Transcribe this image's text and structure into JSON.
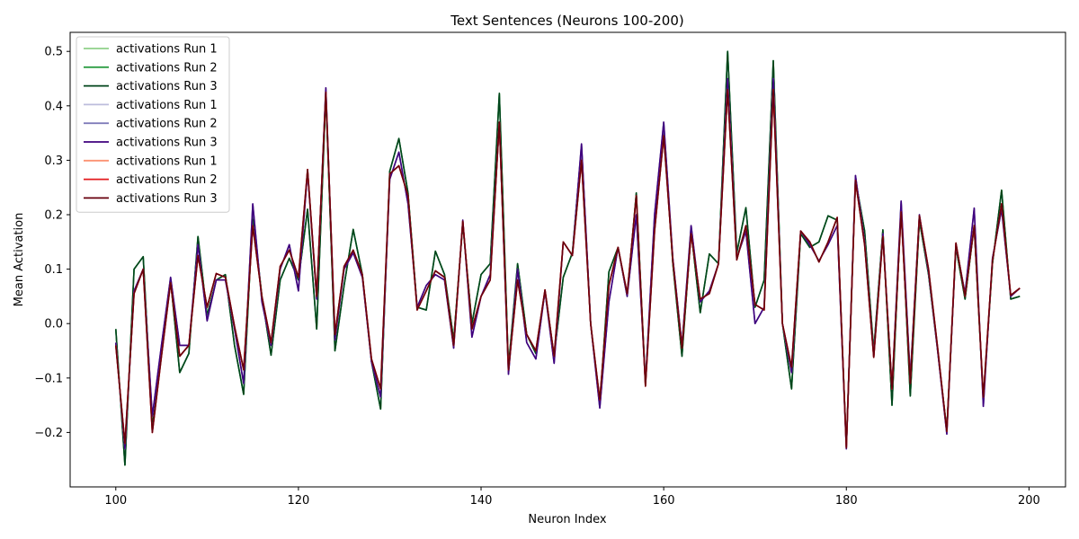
{
  "chart_data": {
    "type": "line",
    "title": "Text Sentences (Neurons 100-200)",
    "xlabel": "Neuron Index",
    "ylabel": "Mean Activation",
    "xlim": [
      95,
      204
    ],
    "ylim": [
      -0.3,
      0.535
    ],
    "xticks": [
      100,
      120,
      140,
      160,
      180,
      200
    ],
    "yticks": [
      -0.2,
      -0.1,
      0.0,
      0.1,
      0.2,
      0.3,
      0.4,
      0.5
    ],
    "ytick_labels": [
      "−0.2",
      "−0.1",
      "0.0",
      "0.1",
      "0.2",
      "0.3",
      "0.4",
      "0.5"
    ],
    "grid": false,
    "legend_position": "top-left",
    "x": [
      100,
      101,
      102,
      103,
      104,
      105,
      106,
      107,
      108,
      109,
      110,
      111,
      112,
      113,
      114,
      115,
      116,
      117,
      118,
      119,
      120,
      121,
      122,
      123,
      124,
      125,
      126,
      127,
      128,
      129,
      130,
      131,
      132,
      133,
      134,
      135,
      136,
      137,
      138,
      139,
      140,
      141,
      142,
      143,
      144,
      145,
      146,
      147,
      148,
      149,
      150,
      151,
      152,
      153,
      154,
      155,
      156,
      157,
      158,
      159,
      160,
      161,
      162,
      163,
      164,
      165,
      166,
      167,
      168,
      169,
      170,
      171,
      172,
      173,
      174,
      175,
      176,
      177,
      178,
      179,
      180,
      181,
      182,
      183,
      184,
      185,
      186,
      187,
      188,
      189,
      190,
      191,
      192,
      193,
      194,
      195,
      196,
      197,
      198,
      199
    ],
    "series": [
      {
        "name": "activations Run 1",
        "color": "#8fd18a",
        "values": [
          -0.01,
          -0.26,
          0.1,
          0.123,
          -0.19,
          -0.05,
          0.08,
          -0.09,
          -0.055,
          0.16,
          0.015,
          0.08,
          0.09,
          -0.04,
          -0.13,
          0.2,
          0.05,
          -0.058,
          0.08,
          0.12,
          0.08,
          0.21,
          -0.01,
          0.42,
          -0.05,
          0.07,
          0.173,
          0.09,
          -0.07,
          -0.157,
          0.28,
          0.34,
          0.24,
          0.03,
          0.025,
          0.133,
          0.09,
          -0.03,
          0.183,
          0.0,
          0.09,
          0.11,
          0.423,
          -0.08,
          0.11,
          -0.02,
          -0.055,
          0.06,
          -0.06,
          0.085,
          0.13,
          0.325,
          0.0,
          -0.15,
          0.095,
          0.14,
          0.05,
          0.24,
          -0.11,
          0.19,
          0.36,
          0.11,
          -0.06,
          0.17,
          0.02,
          0.128,
          0.11,
          0.5,
          0.13,
          0.213,
          0.03,
          0.08,
          0.483,
          0.0,
          -0.12,
          0.165,
          0.14,
          0.15,
          0.198,
          0.19,
          -0.225,
          0.265,
          0.17,
          -0.05,
          0.172,
          -0.15,
          0.22,
          -0.133,
          0.19,
          0.09,
          -0.05,
          -0.195,
          0.14,
          0.045,
          0.18,
          -0.14,
          0.11,
          0.245,
          0.045,
          0.05
        ]
      },
      {
        "name": "activations Run 2",
        "color": "#2e9e45",
        "values": [
          -0.01,
          -0.26,
          0.1,
          0.123,
          -0.19,
          -0.05,
          0.08,
          -0.09,
          -0.055,
          0.16,
          0.015,
          0.08,
          0.09,
          -0.04,
          -0.13,
          0.2,
          0.05,
          -0.058,
          0.08,
          0.12,
          0.08,
          0.21,
          -0.01,
          0.42,
          -0.05,
          0.07,
          0.173,
          0.09,
          -0.07,
          -0.157,
          0.28,
          0.34,
          0.24,
          0.03,
          0.025,
          0.133,
          0.09,
          -0.03,
          0.183,
          0.0,
          0.09,
          0.11,
          0.423,
          -0.08,
          0.11,
          -0.02,
          -0.055,
          0.06,
          -0.06,
          0.085,
          0.13,
          0.325,
          0.0,
          -0.15,
          0.095,
          0.14,
          0.05,
          0.24,
          -0.11,
          0.19,
          0.36,
          0.11,
          -0.06,
          0.17,
          0.02,
          0.128,
          0.11,
          0.5,
          0.13,
          0.213,
          0.03,
          0.08,
          0.483,
          0.0,
          -0.12,
          0.165,
          0.14,
          0.15,
          0.198,
          0.19,
          -0.225,
          0.265,
          0.17,
          -0.05,
          0.172,
          -0.15,
          0.22,
          -0.133,
          0.19,
          0.09,
          -0.05,
          -0.195,
          0.14,
          0.045,
          0.18,
          -0.14,
          0.11,
          0.245,
          0.045,
          0.05
        ]
      },
      {
        "name": "activations Run 3",
        "color": "#00441b",
        "values": [
          -0.01,
          -0.26,
          0.1,
          0.123,
          -0.19,
          -0.05,
          0.08,
          -0.09,
          -0.055,
          0.16,
          0.015,
          0.08,
          0.09,
          -0.04,
          -0.13,
          0.2,
          0.05,
          -0.058,
          0.08,
          0.12,
          0.08,
          0.21,
          -0.01,
          0.42,
          -0.05,
          0.07,
          0.173,
          0.09,
          -0.07,
          -0.157,
          0.28,
          0.34,
          0.24,
          0.03,
          0.025,
          0.133,
          0.09,
          -0.03,
          0.183,
          0.0,
          0.09,
          0.11,
          0.423,
          -0.08,
          0.11,
          -0.02,
          -0.055,
          0.06,
          -0.06,
          0.085,
          0.13,
          0.325,
          0.0,
          -0.15,
          0.095,
          0.14,
          0.05,
          0.24,
          -0.11,
          0.19,
          0.36,
          0.11,
          -0.06,
          0.17,
          0.02,
          0.128,
          0.11,
          0.5,
          0.13,
          0.213,
          0.03,
          0.08,
          0.483,
          0.0,
          -0.12,
          0.165,
          0.14,
          0.15,
          0.198,
          0.19,
          -0.225,
          0.265,
          0.17,
          -0.05,
          0.172,
          -0.15,
          0.22,
          -0.133,
          0.19,
          0.09,
          -0.05,
          -0.195,
          0.14,
          0.045,
          0.18,
          -0.14,
          0.11,
          0.245,
          0.045,
          0.05
        ]
      },
      {
        "name": "activations Run 1",
        "color": "#bcbddc",
        "values": [
          -0.035,
          -0.23,
          0.06,
          0.1,
          -0.17,
          -0.04,
          0.085,
          -0.04,
          -0.04,
          0.145,
          0.005,
          0.08,
          0.08,
          -0.01,
          -0.11,
          0.22,
          0.04,
          -0.04,
          0.1,
          0.145,
          0.06,
          0.28,
          0.045,
          0.433,
          -0.03,
          0.1,
          0.13,
          0.085,
          -0.07,
          -0.135,
          0.265,
          0.315,
          0.22,
          0.03,
          0.07,
          0.09,
          0.08,
          -0.045,
          0.19,
          -0.025,
          0.05,
          0.09,
          0.37,
          -0.093,
          0.1,
          -0.035,
          -0.065,
          0.06,
          -0.073,
          0.15,
          0.125,
          0.33,
          0.0,
          -0.155,
          0.04,
          0.14,
          0.05,
          0.2,
          -0.11,
          0.2,
          0.37,
          0.12,
          -0.04,
          0.18,
          0.04,
          0.06,
          0.11,
          0.45,
          0.12,
          0.17,
          0.0,
          0.03,
          0.45,
          0.0,
          -0.09,
          0.17,
          0.145,
          0.115,
          0.145,
          0.18,
          -0.23,
          0.272,
          0.15,
          -0.06,
          0.165,
          -0.12,
          0.225,
          -0.1,
          0.2,
          0.095,
          -0.05,
          -0.203,
          0.145,
          0.055,
          0.212,
          -0.152,
          0.12,
          0.21,
          0.05,
          0.065
        ]
      },
      {
        "name": "activations Run 2",
        "color": "#807dba",
        "values": [
          -0.035,
          -0.23,
          0.06,
          0.1,
          -0.17,
          -0.04,
          0.085,
          -0.04,
          -0.04,
          0.145,
          0.005,
          0.08,
          0.08,
          -0.01,
          -0.11,
          0.22,
          0.04,
          -0.04,
          0.1,
          0.145,
          0.06,
          0.28,
          0.045,
          0.433,
          -0.03,
          0.1,
          0.13,
          0.085,
          -0.07,
          -0.135,
          0.265,
          0.315,
          0.22,
          0.03,
          0.07,
          0.09,
          0.08,
          -0.045,
          0.19,
          -0.025,
          0.05,
          0.09,
          0.37,
          -0.093,
          0.1,
          -0.035,
          -0.065,
          0.06,
          -0.073,
          0.15,
          0.125,
          0.33,
          0.0,
          -0.155,
          0.04,
          0.14,
          0.05,
          0.2,
          -0.11,
          0.2,
          0.37,
          0.12,
          -0.04,
          0.18,
          0.04,
          0.06,
          0.11,
          0.45,
          0.12,
          0.17,
          0.0,
          0.03,
          0.45,
          0.0,
          -0.09,
          0.17,
          0.145,
          0.115,
          0.145,
          0.18,
          -0.23,
          0.272,
          0.15,
          -0.06,
          0.165,
          -0.12,
          0.225,
          -0.1,
          0.2,
          0.095,
          -0.05,
          -0.203,
          0.145,
          0.055,
          0.212,
          -0.152,
          0.12,
          0.21,
          0.05,
          0.065
        ]
      },
      {
        "name": "activations Run 3",
        "color": "#3f007d",
        "values": [
          -0.035,
          -0.23,
          0.06,
          0.1,
          -0.17,
          -0.04,
          0.085,
          -0.04,
          -0.04,
          0.145,
          0.005,
          0.08,
          0.08,
          -0.01,
          -0.11,
          0.22,
          0.04,
          -0.04,
          0.1,
          0.145,
          0.06,
          0.28,
          0.045,
          0.433,
          -0.03,
          0.1,
          0.13,
          0.085,
          -0.07,
          -0.135,
          0.265,
          0.315,
          0.22,
          0.03,
          0.07,
          0.09,
          0.08,
          -0.045,
          0.19,
          -0.025,
          0.05,
          0.09,
          0.37,
          -0.093,
          0.1,
          -0.035,
          -0.065,
          0.06,
          -0.073,
          0.15,
          0.125,
          0.33,
          0.0,
          -0.155,
          0.04,
          0.14,
          0.05,
          0.2,
          -0.11,
          0.2,
          0.37,
          0.12,
          -0.04,
          0.18,
          0.04,
          0.06,
          0.11,
          0.45,
          0.12,
          0.17,
          0.0,
          0.03,
          0.45,
          0.0,
          -0.09,
          0.17,
          0.145,
          0.115,
          0.145,
          0.18,
          -0.23,
          0.272,
          0.15,
          -0.06,
          0.165,
          -0.12,
          0.225,
          -0.1,
          0.2,
          0.095,
          -0.05,
          -0.203,
          0.145,
          0.055,
          0.212,
          -0.152,
          0.12,
          0.21,
          0.05,
          0.065
        ]
      },
      {
        "name": "activations Run 1",
        "color": "#fc9272",
        "values": [
          -0.04,
          -0.22,
          0.055,
          0.1,
          -0.2,
          -0.06,
          0.075,
          -0.06,
          -0.04,
          0.125,
          0.03,
          0.092,
          0.085,
          -0.005,
          -0.085,
          0.18,
          0.05,
          -0.035,
          0.105,
          0.135,
          0.085,
          0.283,
          0.05,
          0.425,
          -0.02,
          0.105,
          0.135,
          0.09,
          -0.065,
          -0.12,
          0.275,
          0.29,
          0.235,
          0.025,
          0.06,
          0.097,
          0.085,
          -0.04,
          0.188,
          -0.01,
          0.05,
          0.08,
          0.37,
          -0.085,
          0.08,
          -0.02,
          -0.05,
          0.062,
          -0.06,
          0.15,
          0.125,
          0.3,
          0.0,
          -0.14,
          0.07,
          0.14,
          0.055,
          0.235,
          -0.115,
          0.17,
          0.345,
          0.115,
          -0.045,
          0.165,
          0.045,
          0.055,
          0.11,
          0.43,
          0.117,
          0.18,
          0.035,
          0.025,
          0.43,
          0.0,
          -0.08,
          0.17,
          0.15,
          0.113,
          0.15,
          0.195,
          -0.228,
          0.263,
          0.145,
          -0.062,
          0.16,
          -0.12,
          0.205,
          -0.11,
          0.198,
          0.1,
          -0.045,
          -0.198,
          0.148,
          0.05,
          0.18,
          -0.135,
          0.115,
          0.22,
          0.052,
          0.065
        ]
      },
      {
        "name": "activations Run 2",
        "color": "#e31a1c",
        "values": [
          -0.04,
          -0.22,
          0.055,
          0.1,
          -0.2,
          -0.06,
          0.075,
          -0.06,
          -0.04,
          0.125,
          0.03,
          0.092,
          0.085,
          -0.005,
          -0.085,
          0.18,
          0.05,
          -0.035,
          0.105,
          0.135,
          0.085,
          0.283,
          0.05,
          0.425,
          -0.02,
          0.105,
          0.135,
          0.09,
          -0.065,
          -0.12,
          0.275,
          0.29,
          0.235,
          0.025,
          0.06,
          0.097,
          0.085,
          -0.04,
          0.188,
          -0.01,
          0.05,
          0.08,
          0.37,
          -0.085,
          0.08,
          -0.02,
          -0.05,
          0.062,
          -0.06,
          0.15,
          0.125,
          0.3,
          0.0,
          -0.14,
          0.07,
          0.14,
          0.055,
          0.235,
          -0.115,
          0.17,
          0.345,
          0.115,
          -0.045,
          0.165,
          0.045,
          0.055,
          0.11,
          0.43,
          0.117,
          0.18,
          0.035,
          0.025,
          0.43,
          0.0,
          -0.08,
          0.17,
          0.15,
          0.113,
          0.15,
          0.195,
          -0.228,
          0.263,
          0.145,
          -0.062,
          0.16,
          -0.12,
          0.205,
          -0.11,
          0.198,
          0.1,
          -0.045,
          -0.198,
          0.148,
          0.05,
          0.18,
          -0.135,
          0.115,
          0.22,
          0.052,
          0.065
        ]
      },
      {
        "name": "activations Run 3",
        "color": "#67000d",
        "values": [
          -0.04,
          -0.22,
          0.055,
          0.1,
          -0.2,
          -0.06,
          0.075,
          -0.06,
          -0.04,
          0.125,
          0.03,
          0.092,
          0.085,
          -0.005,
          -0.085,
          0.18,
          0.05,
          -0.035,
          0.105,
          0.135,
          0.085,
          0.283,
          0.05,
          0.425,
          -0.02,
          0.105,
          0.135,
          0.09,
          -0.065,
          -0.12,
          0.275,
          0.29,
          0.235,
          0.025,
          0.06,
          0.097,
          0.085,
          -0.04,
          0.188,
          -0.01,
          0.05,
          0.08,
          0.37,
          -0.085,
          0.08,
          -0.02,
          -0.05,
          0.062,
          -0.06,
          0.15,
          0.125,
          0.3,
          0.0,
          -0.14,
          0.07,
          0.14,
          0.055,
          0.235,
          -0.115,
          0.17,
          0.345,
          0.115,
          -0.045,
          0.165,
          0.045,
          0.055,
          0.11,
          0.43,
          0.117,
          0.18,
          0.035,
          0.025,
          0.43,
          0.0,
          -0.08,
          0.17,
          0.15,
          0.113,
          0.15,
          0.195,
          -0.228,
          0.263,
          0.145,
          -0.062,
          0.16,
          -0.12,
          0.205,
          -0.11,
          0.198,
          0.1,
          -0.045,
          -0.198,
          0.148,
          0.05,
          0.18,
          -0.135,
          0.115,
          0.22,
          0.052,
          0.065
        ]
      }
    ]
  }
}
